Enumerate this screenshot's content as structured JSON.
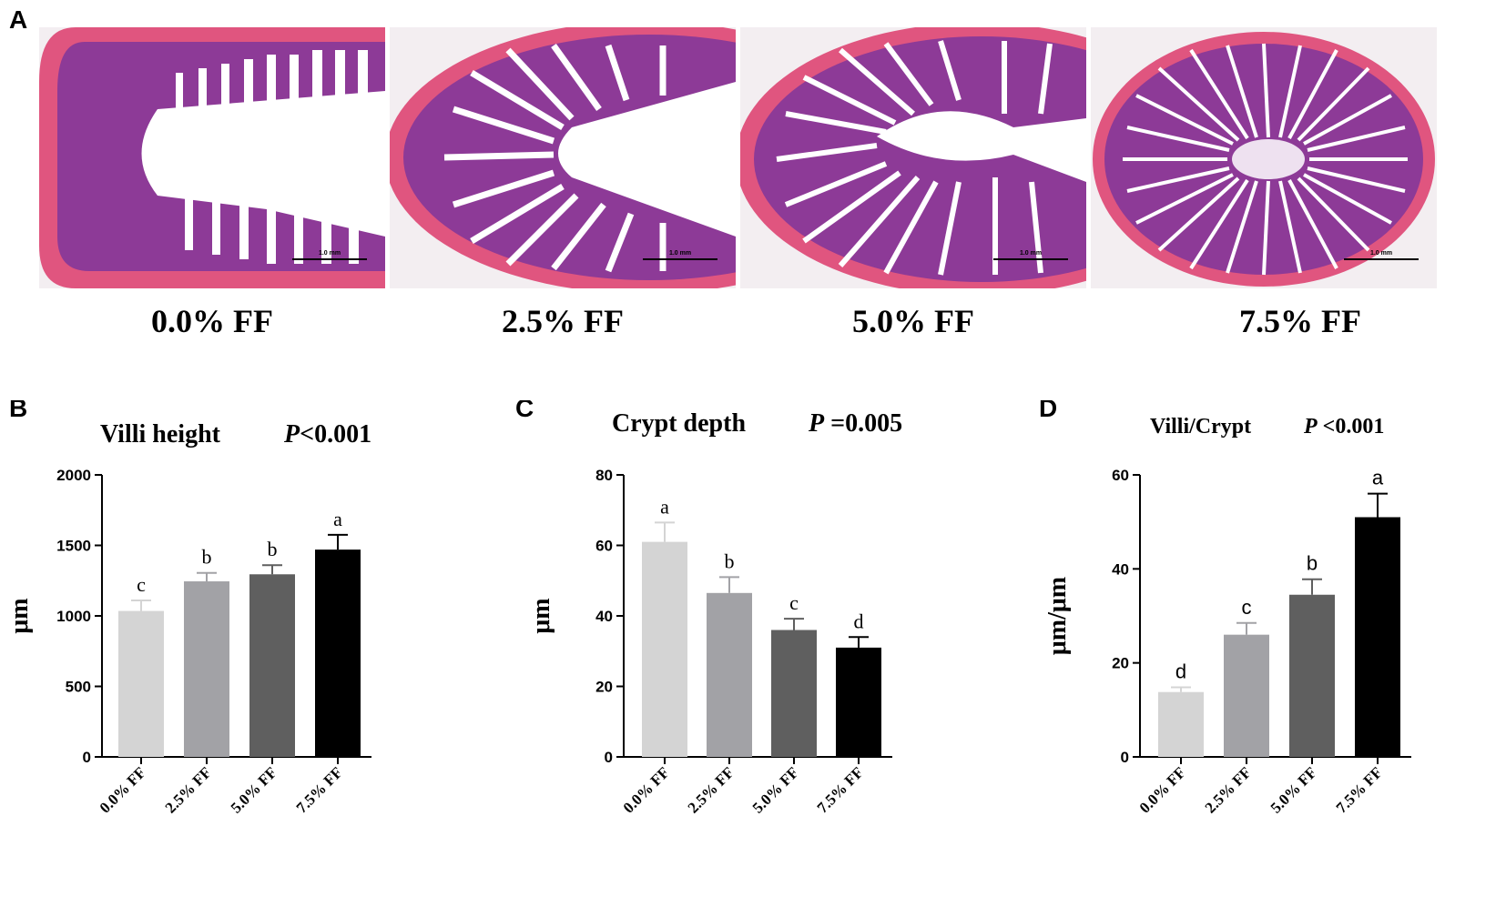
{
  "panel_a": {
    "letter": "A",
    "images": [
      {
        "label": "0.0% FF",
        "scale_bar": "1.0 mm"
      },
      {
        "label": "2.5% FF",
        "scale_bar": "1.0 mm"
      },
      {
        "label": "5.0% FF",
        "scale_bar": "1.0 mm"
      },
      {
        "label": "7.5% FF",
        "scale_bar": "1.0 mm"
      }
    ]
  },
  "colors": {
    "bar_fills": [
      "#d4d4d4",
      "#a2a2a6",
      "#5f5f5f",
      "#000000"
    ],
    "tissue_pink": "#e0557f",
    "tissue_purple": "#8d3a97"
  },
  "chart_data": [
    {
      "letter": "B",
      "type": "bar",
      "title": "Villi height",
      "p_label": "P",
      "p_value": "<0.001",
      "ylabel": "μm",
      "categories": [
        "0.0% FF",
        "2.5% FF",
        "5.0% FF",
        "7.5% FF"
      ],
      "values": [
        1035,
        1245,
        1295,
        1470
      ],
      "errors": [
        75,
        60,
        65,
        105
      ],
      "significance": [
        "c",
        "b",
        "b",
        "a"
      ],
      "ylim": [
        0,
        2000
      ],
      "yticks": [
        0,
        500,
        1000,
        1500,
        2000
      ],
      "ytick_labels": [
        "0",
        "500",
        "1000",
        "1500",
        "2000"
      ]
    },
    {
      "letter": "C",
      "type": "bar",
      "title": "Crypt depth",
      "p_label": "P",
      "p_value": " =0.005",
      "ylabel": "μm",
      "categories": [
        "0.0% FF",
        "2.5% FF",
        "5.0% FF",
        "7.5% FF"
      ],
      "values": [
        61,
        46.5,
        36,
        31
      ],
      "errors": [
        5.5,
        4.5,
        3.2,
        3
      ],
      "significance": [
        "a",
        "b",
        "c",
        "d"
      ],
      "ylim": [
        0,
        80
      ],
      "yticks": [
        0,
        20,
        40,
        60,
        80
      ],
      "ytick_labels": [
        "0",
        "20",
        "40",
        "60",
        "80"
      ]
    },
    {
      "letter": "D",
      "type": "bar",
      "title": "Villi/Crypt",
      "p_label": "P",
      "p_value": " <0.001",
      "ylabel": "μm/μm",
      "categories": [
        "0.0% FF",
        "2.5% FF",
        "5.0% FF",
        "7.5% FF"
      ],
      "values": [
        13.8,
        26,
        34.5,
        51
      ],
      "errors": [
        1,
        2.5,
        3.3,
        5
      ],
      "significance": [
        "d",
        "c",
        "b",
        "a"
      ],
      "ylim": [
        0,
        60
      ],
      "yticks": [
        0,
        20,
        40,
        60
      ],
      "ytick_labels": [
        "0",
        "20",
        "40",
        "60"
      ]
    }
  ]
}
